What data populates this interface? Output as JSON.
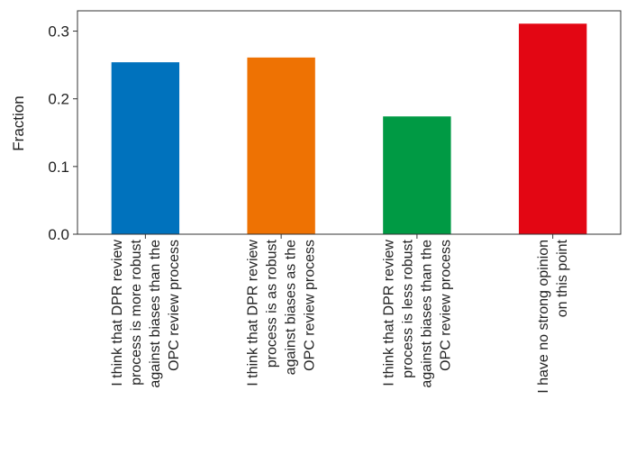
{
  "chart_data": {
    "type": "bar",
    "title": "",
    "xlabel": "",
    "ylabel": "Fraction",
    "ylim": [
      0,
      0.33
    ],
    "yticks": [
      0.0,
      0.1,
      0.2,
      0.3
    ],
    "ytick_labels": [
      "0.0",
      "0.1",
      "0.2",
      "0.3"
    ],
    "grid": false,
    "legend": "none",
    "categories": [
      [
        "I think that DPR review",
        "process is more robust",
        "against biases than the",
        "OPC review process"
      ],
      [
        "I think that DPR review",
        "process is as robust",
        "against biases as the",
        "OPC review process"
      ],
      [
        "I think that DPR review",
        "process is less robust",
        "against biases than the",
        "OPC review process"
      ],
      [
        "I have no strong opinion",
        "on this point"
      ]
    ],
    "values": [
      0.254,
      0.261,
      0.174,
      0.311
    ],
    "colors": [
      "#0072bd",
      "#ee7203",
      "#009a44",
      "#e30613"
    ]
  }
}
